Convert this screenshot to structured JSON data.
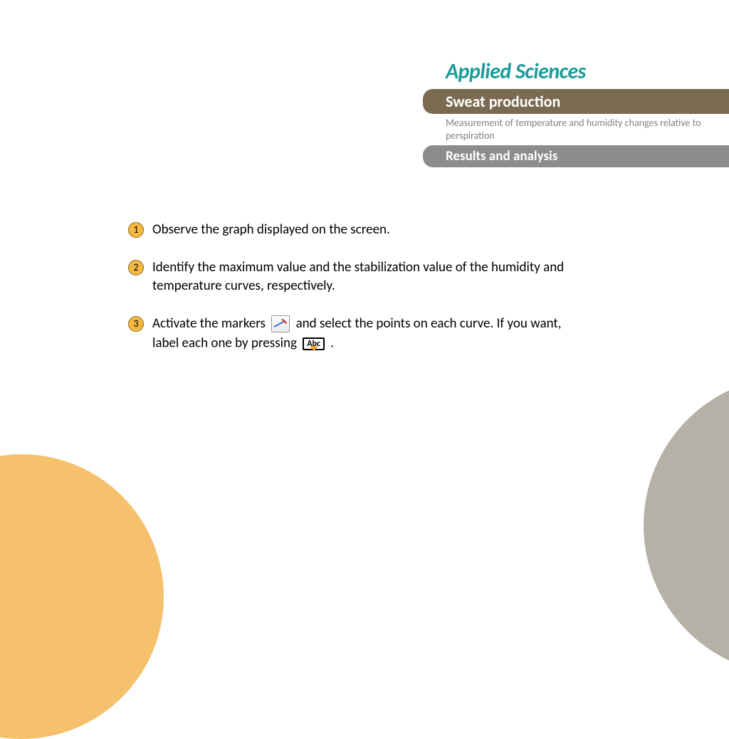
{
  "header": {
    "brand": "Applied Sciences",
    "title": "Sweat production",
    "subtitle": "Measurement of  temperature and humidity changes relative to perspiration",
    "section": "Results and analysis"
  },
  "steps": [
    {
      "num": "1",
      "text": "Observe the graph displayed on the screen."
    },
    {
      "num": "2",
      "text": "Identify the maximum value and the stabilization value of the humidity and temperature curves, respectively."
    },
    {
      "num": "3",
      "text_a": "Activate the markers ",
      "text_b": " and select the points on each curve. If you want, label each one by pressing ",
      "text_c": " ."
    }
  ],
  "icons": {
    "abc_label": "Abc"
  },
  "colors": {
    "brand": "#1a9b9b",
    "bar_brown": "#7a6a50",
    "bar_gray": "#8c8c8c",
    "badge_fill": "#f5b941",
    "badge_border": "#8a6d1f",
    "circle_orange": "#f5c16c",
    "circle_gray": "#b6b1a6"
  }
}
